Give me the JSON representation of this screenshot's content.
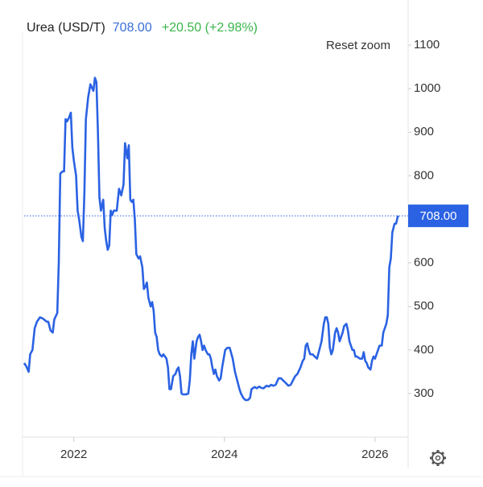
{
  "chart_data": {
    "type": "line",
    "title": "Urea (USD/T)",
    "current": {
      "value": 708,
      "label": "708.00"
    },
    "change": "+20.50 (+2.98%)",
    "reset_zoom": "Reset zoom",
    "color": "#2b62e3",
    "x": [
      2021.34,
      2021.37,
      2021.4,
      2021.42,
      2021.45,
      2021.48,
      2021.51,
      2021.55,
      2021.59,
      2021.64,
      2021.66,
      2021.69,
      2021.72,
      2021.74,
      2021.78,
      2021.8,
      2021.82,
      2021.85,
      2021.87,
      2021.89,
      2021.91,
      2021.94,
      2021.96,
      2021.98,
      2022.0,
      2022.03,
      2022.05,
      2022.07,
      2022.1,
      2022.12,
      2022.14,
      2022.16,
      2022.19,
      2022.22,
      2022.26,
      2022.28,
      2022.3,
      2022.32,
      2022.34,
      2022.36,
      2022.39,
      2022.41,
      2022.43,
      2022.45,
      2022.47,
      2022.49,
      2022.51,
      2022.53,
      2022.57,
      2022.6,
      2022.63,
      2022.66,
      2022.68,
      2022.71,
      2022.73,
      2022.75,
      2022.77,
      2022.79,
      2022.81,
      2022.83,
      2022.86,
      2022.88,
      2022.91,
      2022.93,
      2022.95,
      2022.97,
      2022.99,
      2023.02,
      2023.04,
      2023.06,
      2023.08,
      2023.1,
      2023.12,
      2023.14,
      2023.17,
      2023.19,
      2023.21,
      2023.23,
      2023.25,
      2023.27,
      2023.29,
      2023.32,
      2023.35,
      2023.37,
      2023.39,
      2023.41,
      2023.43,
      2023.45,
      2023.49,
      2023.52,
      2023.54,
      2023.56,
      2023.58,
      2023.6,
      2023.63,
      2023.65,
      2023.67,
      2023.69,
      2023.71,
      2023.73,
      2023.75,
      2023.78,
      2023.8,
      2023.82,
      2023.84,
      2023.86,
      2023.88,
      2023.9,
      2023.93,
      2023.95,
      2023.97,
      2023.99,
      2024.01,
      2024.04,
      2024.07,
      2024.11,
      2024.14,
      2024.17,
      2024.2,
      2024.22,
      2024.25,
      2024.28,
      2024.31,
      2024.34,
      2024.36,
      2024.4,
      2024.43,
      2024.46,
      2024.49,
      2024.52,
      2024.56,
      2024.59,
      2024.62,
      2024.65,
      2024.68,
      2024.72,
      2024.75,
      2024.78,
      2024.81,
      2024.85,
      2024.88,
      2024.91,
      2024.94,
      2024.97,
      2025.01,
      2025.04,
      2025.06,
      2025.08,
      2025.1,
      2025.12,
      2025.14,
      2025.17,
      2025.2,
      2025.23,
      2025.26,
      2025.29,
      2025.32,
      2025.34,
      2025.36,
      2025.38,
      2025.4,
      2025.42,
      2025.44,
      2025.47,
      2025.49,
      2025.51,
      2025.53,
      2025.55,
      2025.57,
      2025.59,
      2025.62,
      2025.64,
      2025.66,
      2025.68,
      2025.7,
      2025.72,
      2025.74,
      2025.76,
      2025.8,
      2025.83,
      2025.85,
      2025.87,
      2025.89,
      2025.91,
      2025.94,
      2025.96,
      2025.98,
      2026.0,
      2026.02,
      2026.04,
      2026.06,
      2026.09,
      2026.11,
      2026.13,
      2026.15,
      2026.17,
      2026.19,
      2026.21,
      2026.23,
      2026.26,
      2026.28,
      2026.3,
      2026.31
    ],
    "values": [
      370,
      362,
      350,
      390,
      400,
      450,
      465,
      475,
      472,
      465,
      465,
      445,
      440,
      470,
      485,
      600,
      805,
      810,
      810,
      930,
      925,
      935,
      945,
      865,
      835,
      800,
      720,
      700,
      660,
      650,
      760,
      930,
      980,
      1010,
      995,
      1025,
      1015,
      900,
      750,
      720,
      745,
      680,
      650,
      630,
      640,
      720,
      710,
      720,
      720,
      770,
      755,
      780,
      875,
      840,
      870,
      745,
      740,
      745,
      700,
      620,
      610,
      615,
      590,
      540,
      545,
      555,
      520,
      500,
      510,
      490,
      440,
      430,
      400,
      390,
      385,
      390,
      385,
      380,
      360,
      310,
      310,
      340,
      345,
      355,
      360,
      340,
      300,
      298,
      298,
      300,
      330,
      390,
      420,
      380,
      420,
      430,
      435,
      420,
      400,
      410,
      400,
      390,
      390,
      380,
      360,
      345,
      355,
      340,
      330,
      335,
      360,
      380,
      400,
      405,
      405,
      380,
      350,
      330,
      310,
      300,
      290,
      285,
      285,
      290,
      310,
      315,
      312,
      316,
      313,
      312,
      318,
      316,
      320,
      318,
      320,
      335,
      335,
      330,
      325,
      318,
      320,
      330,
      340,
      345,
      360,
      375,
      380,
      410,
      415,
      400,
      390,
      390,
      385,
      380,
      400,
      420,
      460,
      475,
      475,
      460,
      405,
      390,
      400,
      440,
      450,
      440,
      420,
      430,
      440,
      455,
      460,
      445,
      420,
      410,
      400,
      400,
      385,
      385,
      380,
      380,
      395,
      375,
      370,
      360,
      355,
      375,
      385,
      380,
      390,
      400,
      410,
      410,
      440,
      450,
      460,
      480,
      590,
      610,
      670,
      690,
      690,
      705,
      708
    ],
    "xlim": [
      2021.34,
      2026.44
    ],
    "xticks": [
      2022,
      2024,
      2026
    ],
    "ylim": [
      200,
      1150
    ],
    "yticks": [
      300,
      400,
      500,
      600,
      700,
      800,
      900,
      1000,
      1100
    ]
  }
}
